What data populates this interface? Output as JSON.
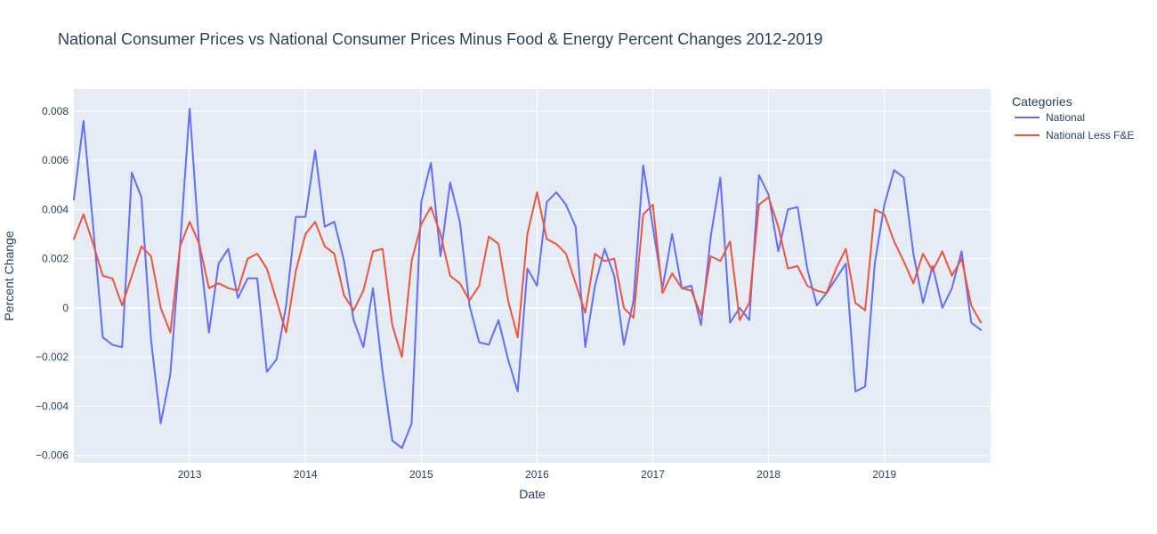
{
  "chart_data": {
    "type": "line",
    "title": "National Consumer Prices vs National Consumer Prices Minus Food & Energy Percent Changes 2012-2019",
    "xlabel": "Date",
    "ylabel": "Percent Change",
    "legend_title": "Categories",
    "legend_position": "top-right",
    "grid": true,
    "x_start": "2012-01",
    "x_end": "2019-12",
    "ylim": [
      -0.0063,
      0.0089
    ],
    "x_ticks": [
      {
        "date": "2013-01",
        "label": "2013"
      },
      {
        "date": "2014-01",
        "label": "2014"
      },
      {
        "date": "2015-01",
        "label": "2015"
      },
      {
        "date": "2016-01",
        "label": "2016"
      },
      {
        "date": "2017-01",
        "label": "2017"
      },
      {
        "date": "2018-01",
        "label": "2018"
      },
      {
        "date": "2019-01",
        "label": "2019"
      }
    ],
    "y_ticks": [
      {
        "value": 0.008,
        "label": "0.008"
      },
      {
        "value": 0.006,
        "label": "0.006"
      },
      {
        "value": 0.004,
        "label": "0.004"
      },
      {
        "value": 0.002,
        "label": "0.002"
      },
      {
        "value": 0,
        "label": "0"
      },
      {
        "value": -0.002,
        "label": "−0.002"
      },
      {
        "value": -0.004,
        "label": "−0.004"
      },
      {
        "value": -0.006,
        "label": "−0.006"
      }
    ],
    "series": [
      {
        "name": "National",
        "color": "#636efa",
        "values": [
          0.0044,
          0.0076,
          0.0033,
          -0.0012,
          -0.0015,
          -0.0016,
          0.0055,
          0.0045,
          -0.0013,
          -0.0047,
          -0.0027,
          0.0025,
          0.0081,
          0.0025,
          -0.001,
          0.0018,
          0.0024,
          0.0004,
          0.0012,
          0.0012,
          -0.0026,
          -0.0021,
          0.0001,
          0.0037,
          0.0037,
          0.0064,
          0.0033,
          0.0035,
          0.0019,
          -0.0005,
          -0.0016,
          0.0008,
          -0.0026,
          -0.0054,
          -0.0057,
          -0.0047,
          0.0043,
          0.0059,
          0.0021,
          0.0051,
          0.0035,
          0.0001,
          -0.0014,
          -0.0015,
          -0.0005,
          -0.0021,
          -0.0034,
          0.0016,
          0.0009,
          0.0043,
          0.0047,
          0.0042,
          0.0033,
          -0.0016,
          0.0009,
          0.0024,
          0.0013,
          -0.0015,
          0.0003,
          0.0058,
          0.0033,
          0.0008,
          0.003,
          0.0008,
          0.0009,
          -0.0007,
          0.0029,
          0.0053,
          -0.0006,
          0.0,
          -0.0005,
          0.0054,
          0.0046,
          0.0023,
          0.004,
          0.0041,
          0.0016,
          0.0001,
          0.0006,
          0.0012,
          0.0018,
          -0.0034,
          -0.0032,
          0.0018,
          0.0042,
          0.0056,
          0.0053,
          0.0022,
          0.0002,
          0.0017,
          0.0,
          0.0008,
          0.0023,
          -0.0006,
          -0.0009
        ]
      },
      {
        "name": "National Less F&E",
        "color": "#ef553b",
        "values": [
          0.0028,
          0.0038,
          0.0026,
          0.0013,
          0.0012,
          0.0001,
          0.0013,
          0.0025,
          0.0021,
          0.0,
          -0.001,
          0.0025,
          0.0035,
          0.0026,
          0.0008,
          0.001,
          0.0008,
          0.0007,
          0.002,
          0.0022,
          0.0016,
          0.0003,
          -0.001,
          0.0015,
          0.003,
          0.0035,
          0.0025,
          0.0022,
          0.0005,
          -0.0001,
          0.0007,
          0.0023,
          0.0024,
          -0.0007,
          -0.002,
          0.0019,
          0.0034,
          0.0041,
          0.003,
          0.0013,
          0.001,
          0.0003,
          0.0009,
          0.0029,
          0.0026,
          0.0003,
          -0.0012,
          0.003,
          0.0047,
          0.0028,
          0.0026,
          0.0022,
          0.001,
          -0.0002,
          0.0022,
          0.0019,
          0.002,
          0.0,
          -0.0004,
          0.0038,
          0.0042,
          0.0006,
          0.0014,
          0.0008,
          0.0007,
          -0.0003,
          0.0021,
          0.0019,
          0.0027,
          -0.0005,
          0.0002,
          0.0042,
          0.0045,
          0.0033,
          0.0016,
          0.0017,
          0.0009,
          0.0007,
          0.0006,
          0.0016,
          0.0024,
          0.0002,
          -0.0001,
          0.004,
          0.0038,
          0.0027,
          0.0019,
          0.001,
          0.0022,
          0.0015,
          0.0023,
          0.0013,
          0.002,
          0.0001,
          -0.0006
        ]
      }
    ]
  }
}
